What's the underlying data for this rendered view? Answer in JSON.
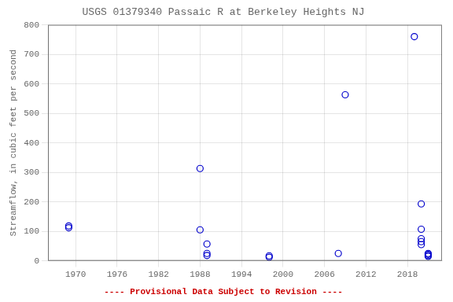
{
  "chart_data": {
    "type": "scatter",
    "title": "USGS 01379340 Passaic R at Berkeley Heights NJ",
    "ylabel": "Streamflow, in cubic feet per second",
    "annotations": [
      {
        "text": "---- Provisional Data Subject to Revision ----",
        "color": "#cc0000"
      }
    ],
    "x": [
      1969,
      1969,
      1988,
      1988,
      1989,
      1989,
      1989,
      1998,
      1998,
      2008,
      2009,
      2019,
      2020,
      2020,
      2020,
      2020,
      2020,
      2021,
      2021,
      2021,
      2021
    ],
    "values": [
      118,
      112,
      313,
      105,
      57,
      25,
      18,
      17,
      12,
      25,
      563,
      760,
      193,
      107,
      75,
      65,
      55,
      25,
      22,
      18,
      15
    ],
    "color": "#0000cc",
    "marker": "open_circle",
    "xlim": [
      1966,
      2023
    ],
    "ylim": [
      0,
      800
    ],
    "xticks": [
      1970,
      1976,
      1982,
      1988,
      1994,
      2000,
      2006,
      2012,
      2018
    ],
    "yticks": [
      0,
      100,
      200,
      300,
      400,
      500,
      600,
      700,
      800
    ],
    "grid": true
  }
}
